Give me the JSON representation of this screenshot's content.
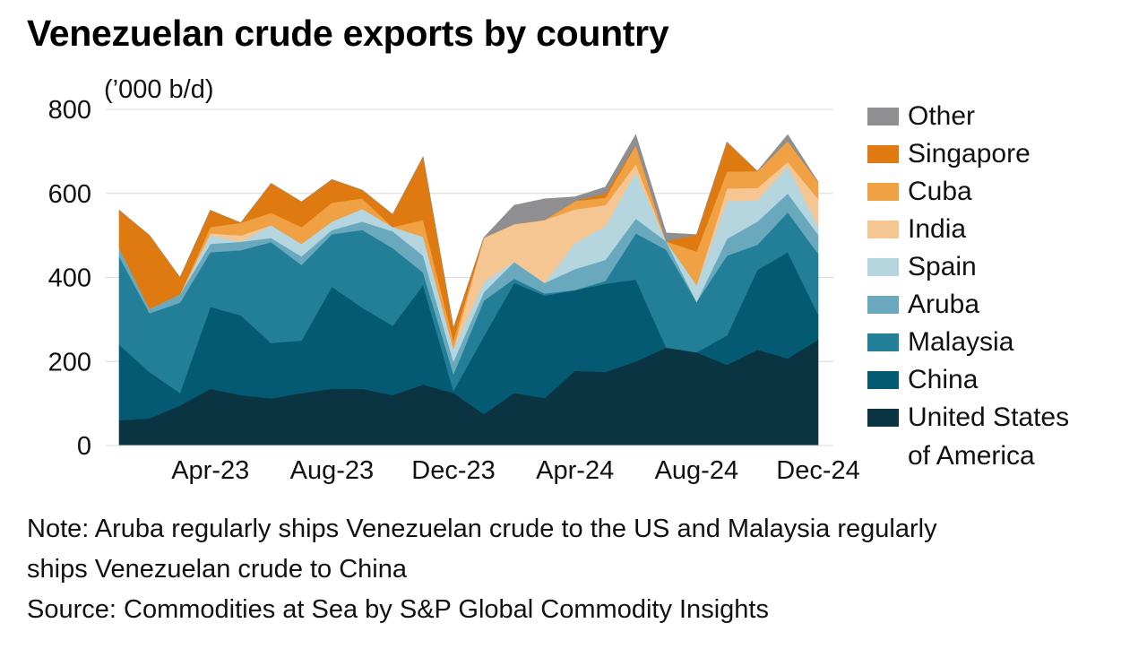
{
  "title": "Venezuelan crude exports by country",
  "unit_label": "(’000 b/d)",
  "note_line1": "Note: Aruba regularly ships Venezuelan crude to the US and Malaysia regularly",
  "note_line2": "ships Venezuelan crude to China",
  "source": "Source: Commodities at Sea by S&P Global Commodity Insights",
  "chart_data": {
    "type": "area",
    "stacked": true,
    "title": "Venezuelan crude exports by country",
    "ylabel": "(’000 b/d)",
    "ylim": [
      0,
      800
    ],
    "yticks": [
      0,
      200,
      400,
      600,
      800
    ],
    "grid": true,
    "legend_position": "right",
    "x": [
      "Jan-23",
      "Feb-23",
      "Mar-23",
      "Apr-23",
      "May-23",
      "Jun-23",
      "Jul-23",
      "Aug-23",
      "Sep-23",
      "Oct-23",
      "Nov-23",
      "Dec-23",
      "Jan-24",
      "Feb-24",
      "Mar-24",
      "Apr-24",
      "May-24",
      "Jun-24",
      "Jul-24",
      "Aug-24",
      "Sep-24",
      "Oct-24",
      "Nov-24",
      "Dec-24"
    ],
    "xtick_labels": [
      "Apr-23",
      "Aug-23",
      "Dec-23",
      "Apr-24",
      "Aug-24",
      "Dec-24"
    ],
    "series": [
      {
        "name": "United States of America",
        "color": "#0b3443",
        "values": [
          60,
          65,
          95,
          135,
          120,
          112,
          125,
          135,
          135,
          120,
          145,
          125,
          75,
          125,
          113,
          178,
          175,
          200,
          233,
          222,
          192,
          228,
          207,
          252
        ]
      },
      {
        "name": "China",
        "color": "#045a72",
        "values": [
          180,
          110,
          30,
          195,
          190,
          132,
          125,
          243,
          193,
          165,
          237,
          5,
          185,
          262,
          244,
          192,
          210,
          195,
          0,
          0,
          70,
          190,
          253,
          60
        ]
      },
      {
        "name": "Malaysia",
        "color": "#237e97",
        "values": [
          210,
          140,
          215,
          130,
          155,
          240,
          180,
          125,
          185,
          185,
          30,
          40,
          85,
          10,
          5,
          0,
          7,
          110,
          233,
          120,
          190,
          60,
          95,
          145
        ]
      },
      {
        "name": "Aruba",
        "color": "#6aa9bd",
        "values": [
          20,
          10,
          20,
          20,
          20,
          10,
          20,
          10,
          20,
          40,
          40,
          30,
          20,
          40,
          25,
          50,
          50,
          35,
          20,
          0,
          40,
          55,
          45,
          45
        ]
      },
      {
        "name": "Spain",
        "color": "#b5d6df",
        "values": [
          0,
          0,
          0,
          20,
          0,
          30,
          30,
          20,
          30,
          10,
          45,
          30,
          25,
          0,
          0,
          62,
          80,
          110,
          0,
          40,
          90,
          50,
          65,
          20
        ]
      },
      {
        "name": "India",
        "color": "#f5c592",
        "values": [
          0,
          0,
          0,
          5,
          15,
          0,
          0,
          0,
          0,
          0,
          0,
          0,
          105,
          90,
          150,
          80,
          50,
          20,
          0,
          0,
          30,
          30,
          10,
          65
        ]
      },
      {
        "name": "Cuba",
        "color": "#f0a143",
        "values": [
          0,
          0,
          0,
          15,
          30,
          30,
          40,
          45,
          25,
          0,
          40,
          20,
          0,
          0,
          0,
          20,
          18,
          45,
          0,
          80,
          40,
          40,
          50,
          40
        ]
      },
      {
        "name": "Singapore",
        "color": "#df7a10",
        "values": [
          90,
          175,
          40,
          40,
          0,
          70,
          60,
          55,
          20,
          30,
          150,
          30,
          0,
          0,
          0,
          0,
          10,
          0,
          0,
          40,
          70,
          0,
          0,
          0
        ]
      },
      {
        "name": "Other",
        "color": "#8f8e91",
        "values": [
          0,
          0,
          0,
          0,
          0,
          0,
          0,
          0,
          0,
          0,
          0,
          0,
          0,
          45,
          50,
          10,
          15,
          25,
          20,
          0,
          0,
          0,
          15,
          0
        ]
      }
    ]
  },
  "legend": {
    "items": [
      {
        "label": "Other",
        "color": "#8f8e91"
      },
      {
        "label": "Singapore",
        "color": "#df7a10"
      },
      {
        "label": "Cuba",
        "color": "#f0a143"
      },
      {
        "label": "India",
        "color": "#f5c592"
      },
      {
        "label": "Spain",
        "color": "#b5d6df"
      },
      {
        "label": "Aruba",
        "color": "#6aa9bd"
      },
      {
        "label": "Malaysia",
        "color": "#237e97"
      },
      {
        "label": "China",
        "color": "#045a72"
      },
      {
        "label": "United States",
        "label2": "of America",
        "color": "#0b3443"
      }
    ]
  }
}
